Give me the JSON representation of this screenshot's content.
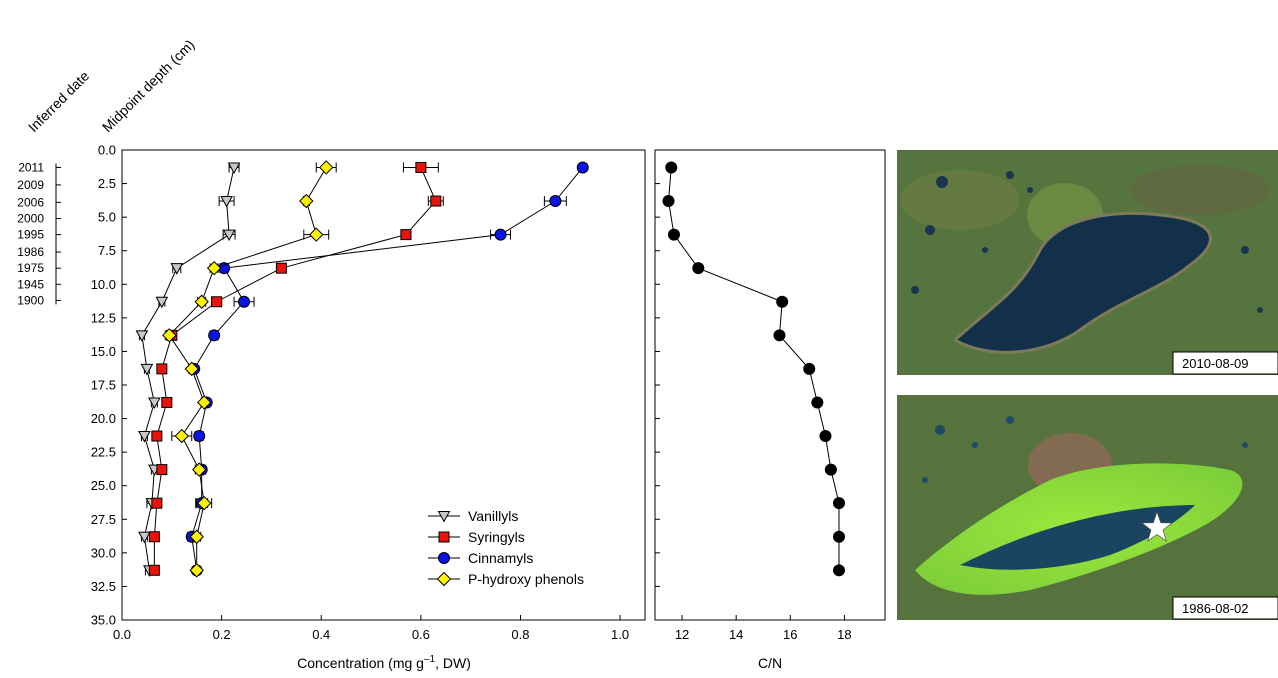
{
  "chart_data": [
    {
      "type": "scatter",
      "xlabel_main": "Concentration (mg g",
      "xlabel_sup": "–1",
      "xlabel_tail": ", DW)",
      "ylabel": "Midpoint depth (cm)",
      "ylabel2": "Inferred date",
      "xlim": [
        0,
        1.05
      ],
      "ylim": [
        35,
        0
      ],
      "xticks": [
        "0.0",
        "0.2",
        "0.4",
        "0.6",
        "0.8",
        "1.0"
      ],
      "yticks": [
        "0.0",
        "2.5",
        "5.0",
        "7.5",
        "10.0",
        "12.5",
        "15.0",
        "17.5",
        "20.0",
        "22.5",
        "25.0",
        "27.5",
        "30.0",
        "32.5",
        "35.0"
      ],
      "date_labels": [
        {
          "label": "2011",
          "depth": 1.3
        },
        {
          "label": "2009",
          "depth": 2.6
        },
        {
          "label": "2006",
          "depth": 3.9
        },
        {
          "label": "2000",
          "depth": 5.1
        },
        {
          "label": "1995",
          "depth": 6.3
        },
        {
          "label": "1986",
          "depth": 7.6
        },
        {
          "label": "1975",
          "depth": 8.8
        },
        {
          "label": "1945",
          "depth": 10.0
        },
        {
          "label": "1900",
          "depth": 11.2
        }
      ],
      "legend_position": "bottom-right",
      "series": [
        {
          "name": "Vanillyls",
          "marker": "triangle-down",
          "color": "#c8c8c8",
          "y": [
            1.3,
            3.8,
            6.3,
            8.8,
            11.3,
            13.8,
            16.3,
            18.8,
            21.3,
            23.8,
            26.3,
            28.8,
            31.3
          ],
          "x": [
            0.225,
            0.21,
            0.215,
            0.11,
            0.08,
            0.04,
            0.05,
            0.065,
            0.045,
            0.065,
            0.06,
            0.045,
            0.055
          ],
          "err": [
            0.01,
            0.015,
            0.012,
            0.008,
            0.006,
            0.005,
            0.005,
            0.006,
            0.006,
            0.006,
            0.01,
            0.006,
            0.008
          ]
        },
        {
          "name": "Syringyls",
          "marker": "square",
          "color": "#e8140c",
          "y": [
            1.3,
            3.8,
            6.3,
            8.8,
            11.3,
            13.8,
            16.3,
            18.8,
            21.3,
            23.8,
            26.3,
            28.8,
            31.3
          ],
          "x": [
            0.6,
            0.63,
            0.57,
            0.32,
            0.19,
            0.1,
            0.08,
            0.09,
            0.07,
            0.08,
            0.07,
            0.065,
            0.065
          ],
          "err": [
            0.035,
            0.015,
            0.01,
            0.008,
            0.01,
            0.006,
            0.006,
            0.006,
            0.006,
            0.006,
            0.006,
            0.006,
            0.006
          ]
        },
        {
          "name": "Cinnamyls",
          "marker": "circle",
          "color": "#0a14e6",
          "y": [
            1.3,
            3.8,
            6.3,
            8.8,
            11.3,
            13.8,
            16.3,
            18.8,
            21.3,
            23.8,
            26.3,
            28.8,
            31.3
          ],
          "x": [
            0.925,
            0.87,
            0.76,
            0.205,
            0.245,
            0.185,
            0.145,
            0.17,
            0.155,
            0.16,
            0.16,
            0.14,
            0.15
          ],
          "err": [
            0.0,
            0.022,
            0.02,
            0.008,
            0.02,
            0.008,
            0.006,
            0.006,
            0.008,
            0.008,
            0.012,
            0.008,
            0.006
          ]
        },
        {
          "name": "P-hydroxy phenols",
          "marker": "diamond",
          "color": "#fff200",
          "y": [
            1.3,
            3.8,
            6.3,
            8.8,
            11.3,
            13.8,
            16.3,
            18.8,
            21.3,
            23.8,
            26.3,
            28.8,
            31.3
          ],
          "x": [
            0.41,
            0.37,
            0.39,
            0.185,
            0.16,
            0.095,
            0.14,
            0.165,
            0.12,
            0.155,
            0.165,
            0.15,
            0.15
          ],
          "err": [
            0.02,
            0.006,
            0.025,
            0.008,
            0.008,
            0.008,
            0.006,
            0.006,
            0.02,
            0.008,
            0.015,
            0.008,
            0.006
          ]
        }
      ]
    },
    {
      "type": "line",
      "xlabel": "C/N",
      "xlim": [
        11,
        19.5
      ],
      "ylim": [
        35,
        0
      ],
      "xticks": [
        "12",
        "14",
        "16",
        "18"
      ],
      "series": [
        {
          "name": "",
          "marker": "circle",
          "color": "#000000",
          "y": [
            1.3,
            3.8,
            6.3,
            8.8,
            11.3,
            13.8,
            16.3,
            18.8,
            21.3,
            23.8,
            26.3,
            28.8,
            31.3
          ],
          "x": [
            11.6,
            11.5,
            11.7,
            12.6,
            15.7,
            15.6,
            16.7,
            17.0,
            17.3,
            17.5,
            17.8,
            17.8,
            17.8
          ]
        }
      ]
    }
  ],
  "images": [
    {
      "label": "2010-08-09",
      "description_icon": "satellite-lake-image"
    },
    {
      "label": "1986-08-02",
      "description_icon": "satellite-lake-image",
      "marker": "star-icon"
    }
  ]
}
